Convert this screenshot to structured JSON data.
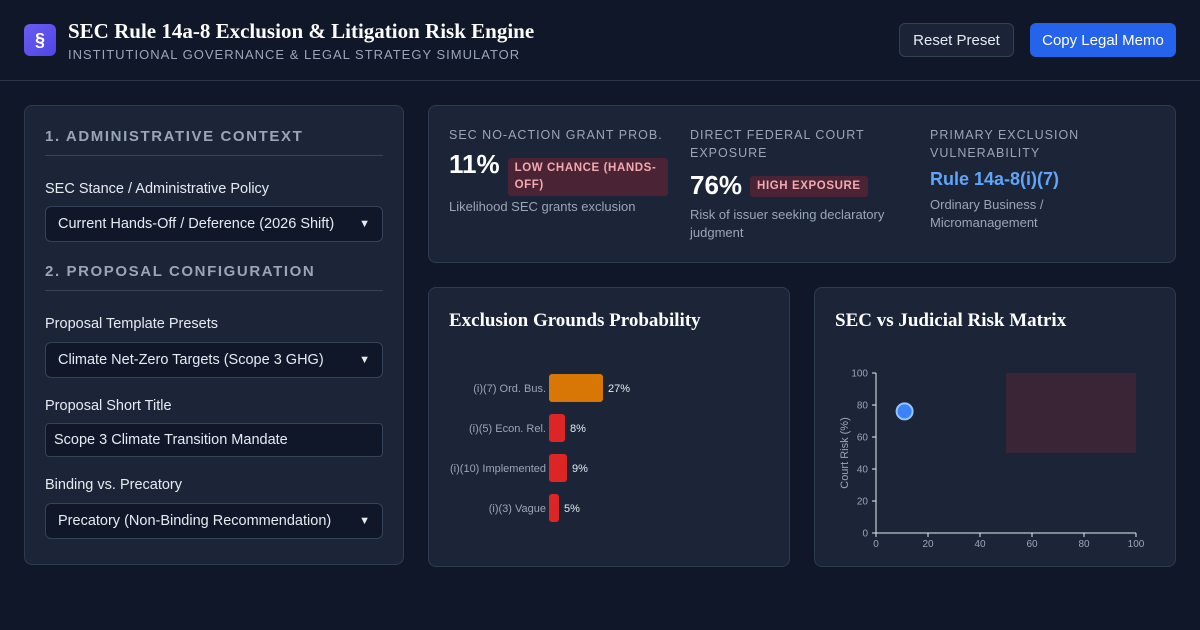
{
  "header": {
    "logo_glyph": "§",
    "title": "SEC Rule 14a-8 Exclusion & Litigation Risk Engine",
    "subtitle": "INSTITUTIONAL GOVERNANCE & LEGAL STRATEGY SIMULATOR",
    "reset_label": "Reset Preset",
    "copy_label": "Copy Legal Memo"
  },
  "sidebar": {
    "section1_title": "1. ADMINISTRATIVE CONTEXT",
    "sec_stance_label": "SEC Stance / Administrative Policy",
    "sec_stance_value": "Current Hands-Off / Deference (2026 Shift)",
    "section2_title": "2. PROPOSAL CONFIGURATION",
    "template_label": "Proposal Template Presets",
    "template_value": "Climate Net-Zero Targets (Scope 3 GHG)",
    "short_title_label": "Proposal Short Title",
    "short_title_value": "Scope 3 Climate Transition Mandate",
    "binding_label": "Binding vs. Precatory",
    "binding_value": "Precatory (Non-Binding Recommendation)"
  },
  "stats": {
    "grant": {
      "label": "SEC NO-ACTION GRANT PROB.",
      "value": "11%",
      "badge": "LOW CHANCE (HANDS-OFF)",
      "desc": "Likelihood SEC grants exclusion"
    },
    "court": {
      "label": "DIRECT FEDERAL COURT EXPOSURE",
      "value": "76%",
      "badge": "HIGH EXPOSURE",
      "desc": "Risk of issuer seeking declaratory judgment"
    },
    "vuln": {
      "label": "PRIMARY EXCLUSION VULNERABILITY",
      "value": "Rule 14a-8(i)(7)",
      "desc": "Ordinary Business / Micromanagement"
    }
  },
  "colors": {
    "accent": "#2563eb",
    "bar_primary": "#d97706",
    "bar_secondary": "#dc2626",
    "point": "#3b82f6",
    "danger_zone": "#3a2536",
    "badge_bg": "#4a2434",
    "badge_text": "#f3a9b0"
  },
  "chart_data": [
    {
      "type": "bar",
      "orientation": "horizontal",
      "title": "Exclusion Grounds Probability",
      "categories": [
        "(i)(7) Ord. Bus.",
        "(i)(5) Econ. Rel.",
        "(i)(10) Implemented",
        "(i)(3) Vague"
      ],
      "values": [
        27,
        8,
        9,
        5
      ],
      "value_labels": [
        "27%",
        "8%",
        "9%",
        "5%"
      ],
      "xlim": [
        0,
        100
      ]
    },
    {
      "type": "scatter",
      "title": "SEC vs Judicial Risk Matrix",
      "ylabel": "Court Risk (%)",
      "xlim": [
        0,
        100
      ],
      "ylim": [
        0,
        100
      ],
      "yticks": [
        "0",
        "20",
        "40",
        "60",
        "80",
        "100"
      ],
      "xticks": [
        "0",
        "20",
        "40",
        "60",
        "80",
        "100"
      ],
      "points": [
        {
          "x": 11,
          "y": 76
        }
      ],
      "zone": {
        "x": [
          50,
          100
        ],
        "y": [
          50,
          100
        ]
      }
    }
  ]
}
